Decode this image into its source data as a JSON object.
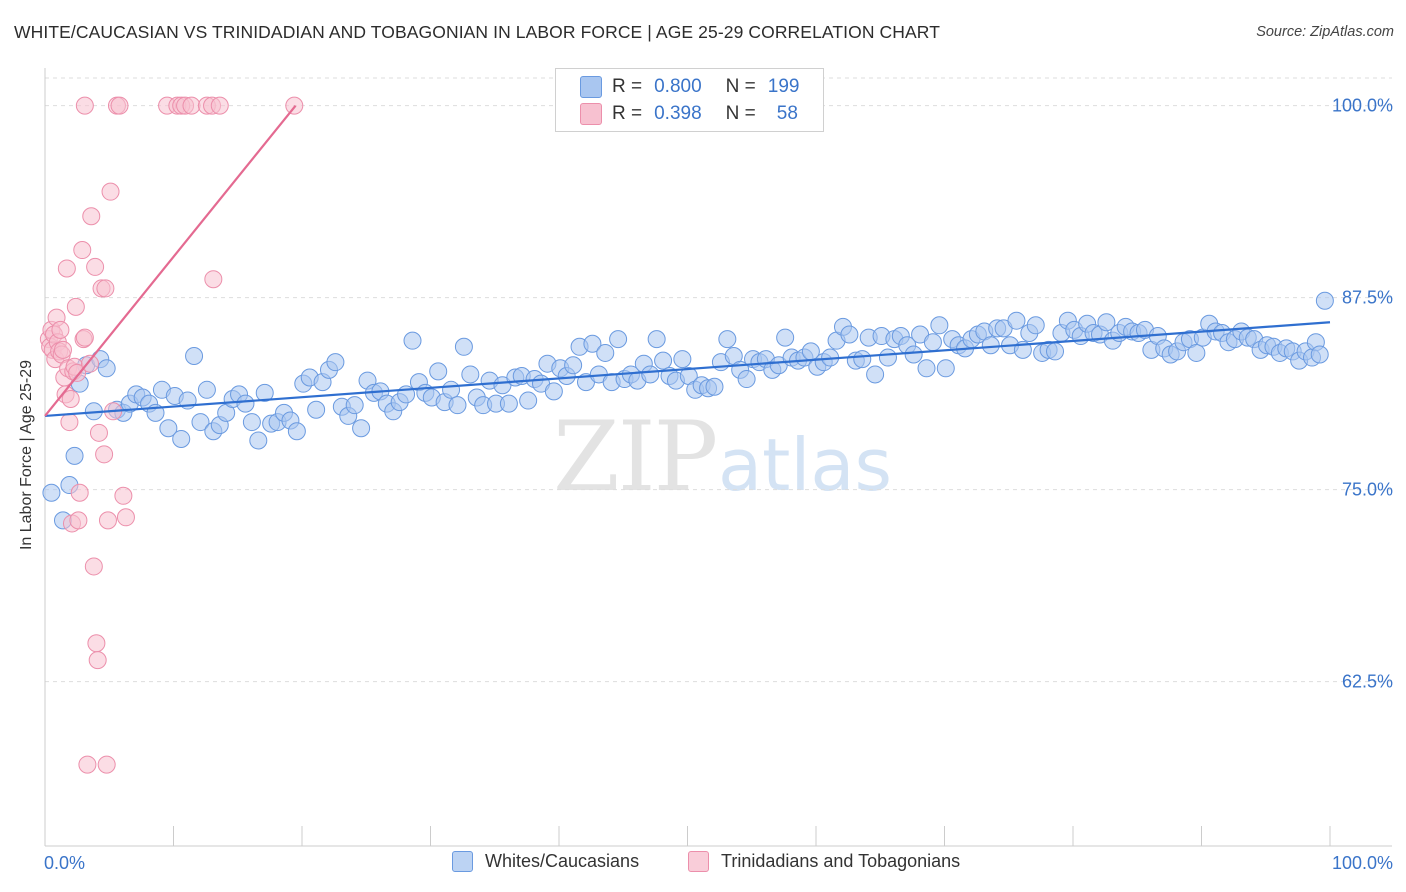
{
  "title": "WHITE/CAUCASIAN VS TRINIDADIAN AND TOBAGONIAN IN LABOR FORCE | AGE 25-29 CORRELATION CHART",
  "source": "Source: ZipAtlas.com",
  "watermark": {
    "zip": "ZIP",
    "atlas": "atlas"
  },
  "stats": [
    {
      "r_label": "R =",
      "r_value": "0.800",
      "n_label": "N =",
      "n_value": "199",
      "color": "#a9c6f0",
      "border": "#6a9ae0"
    },
    {
      "r_label": "R =",
      "r_value": "0.398",
      "n_label": "N =",
      "n_value": "58",
      "color": "#f7c1d0",
      "border": "#ec8fab"
    }
  ],
  "legend": [
    {
      "label": "Whites/Caucasians",
      "color": "#bcd3f3",
      "border": "#6a9ae0"
    },
    {
      "label": "Trinidadians and Tobagonians",
      "color": "#f9cdd9",
      "border": "#ec8fab"
    }
  ],
  "chart_data": {
    "type": "scatter",
    "title": "WHITE/CAUCASIAN VS TRINIDADIAN AND TOBAGONIAN IN LABOR FORCE | AGE 25-29 CORRELATION CHART",
    "xlabel": "",
    "ylabel": "In Labor Force | Age 25-29",
    "xlim": [
      0,
      100
    ],
    "ylim": [
      51.8,
      101.8
    ],
    "x_tick_labels": [
      {
        "value": 0,
        "label": "0.0%"
      },
      {
        "value": 100,
        "label": "100.0%"
      }
    ],
    "y_tick_labels": [
      {
        "value": 100,
        "label": "100.0%"
      },
      {
        "value": 87.5,
        "label": "87.5%"
      },
      {
        "value": 75,
        "label": "75.0%"
      },
      {
        "value": 62.5,
        "label": "62.5%"
      }
    ],
    "colors": {
      "blue_fill": "#a9c6f0",
      "blue_stroke": "#6a9ae0",
      "blue_line": "#2f6fd0",
      "pink_fill": "#f7c1d0",
      "pink_stroke": "#ec8fab",
      "pink_line": "#e46a91",
      "axis_text": "#3a74c9",
      "grid": "#dddddd"
    },
    "series": [
      {
        "name": "Whites/Caucasians",
        "trend": {
          "x": [
            0,
            100
          ],
          "y": [
            79.8,
            85.9
          ]
        },
        "points": [
          [
            0.5,
            74.8
          ],
          [
            1.4,
            73.0
          ],
          [
            1.9,
            75.3
          ],
          [
            2.3,
            77.2
          ],
          [
            2.7,
            81.9
          ],
          [
            3.2,
            83.1
          ],
          [
            3.8,
            80.1
          ],
          [
            4.3,
            83.5
          ],
          [
            4.8,
            82.9
          ],
          [
            5.6,
            80.2
          ],
          [
            6.1,
            80.0
          ],
          [
            6.6,
            80.6
          ],
          [
            7.1,
            81.2
          ],
          [
            7.6,
            81.0
          ],
          [
            8.1,
            80.6
          ],
          [
            8.6,
            80.0
          ],
          [
            9.1,
            81.5
          ],
          [
            9.6,
            79.0
          ],
          [
            10.1,
            81.1
          ],
          [
            10.6,
            78.3
          ],
          [
            11.1,
            80.8
          ],
          [
            11.6,
            83.7
          ],
          [
            12.1,
            79.4
          ],
          [
            12.6,
            81.5
          ],
          [
            13.1,
            78.8
          ],
          [
            13.6,
            79.2
          ],
          [
            14.1,
            80.0
          ],
          [
            14.6,
            80.9
          ],
          [
            15.1,
            81.2
          ],
          [
            15.6,
            80.6
          ],
          [
            16.1,
            79.4
          ],
          [
            16.6,
            78.2
          ],
          [
            17.1,
            81.3
          ],
          [
            17.6,
            79.3
          ],
          [
            18.1,
            79.4
          ],
          [
            18.6,
            80.0
          ],
          [
            19.1,
            79.5
          ],
          [
            19.6,
            78.8
          ],
          [
            20.1,
            81.9
          ],
          [
            20.6,
            82.3
          ],
          [
            21.1,
            80.2
          ],
          [
            21.6,
            82.0
          ],
          [
            22.1,
            82.8
          ],
          [
            22.6,
            83.3
          ],
          [
            23.1,
            80.4
          ],
          [
            23.6,
            79.8
          ],
          [
            24.1,
            80.5
          ],
          [
            24.6,
            79.0
          ],
          [
            25.1,
            82.1
          ],
          [
            25.6,
            81.3
          ],
          [
            26.1,
            81.4
          ],
          [
            26.6,
            80.6
          ],
          [
            27.1,
            80.1
          ],
          [
            27.6,
            80.7
          ],
          [
            28.1,
            81.2
          ],
          [
            28.6,
            84.7
          ],
          [
            29.1,
            82.0
          ],
          [
            29.6,
            81.3
          ],
          [
            30.1,
            81.0
          ],
          [
            30.6,
            82.7
          ],
          [
            31.1,
            80.7
          ],
          [
            31.6,
            81.5
          ],
          [
            32.1,
            80.5
          ],
          [
            32.6,
            84.3
          ],
          [
            33.1,
            82.5
          ],
          [
            33.6,
            81.0
          ],
          [
            34.1,
            80.5
          ],
          [
            34.6,
            82.1
          ],
          [
            35.1,
            80.6
          ],
          [
            35.6,
            81.8
          ],
          [
            36.1,
            80.6
          ],
          [
            36.6,
            82.3
          ],
          [
            37.1,
            82.4
          ],
          [
            37.6,
            80.8
          ],
          [
            38.1,
            82.2
          ],
          [
            38.6,
            81.9
          ],
          [
            39.1,
            83.2
          ],
          [
            39.6,
            81.4
          ],
          [
            40.1,
            82.9
          ],
          [
            40.6,
            82.4
          ],
          [
            41.1,
            83.1
          ],
          [
            41.6,
            84.3
          ],
          [
            42.1,
            82.0
          ],
          [
            42.6,
            84.5
          ],
          [
            43.1,
            82.5
          ],
          [
            43.6,
            83.9
          ],
          [
            44.1,
            82.0
          ],
          [
            44.6,
            84.8
          ],
          [
            45.1,
            82.2
          ],
          [
            45.6,
            82.5
          ],
          [
            46.1,
            82.1
          ],
          [
            46.6,
            83.2
          ],
          [
            47.1,
            82.5
          ],
          [
            47.6,
            84.8
          ],
          [
            48.1,
            83.4
          ],
          [
            48.6,
            82.4
          ],
          [
            49.1,
            82.1
          ],
          [
            49.6,
            83.5
          ],
          [
            50.1,
            82.4
          ],
          [
            50.6,
            81.5
          ],
          [
            51.1,
            81.8
          ],
          [
            51.6,
            81.6
          ],
          [
            52.1,
            81.7
          ],
          [
            52.6,
            83.3
          ],
          [
            53.1,
            84.8
          ],
          [
            53.6,
            83.7
          ],
          [
            54.1,
            82.8
          ],
          [
            54.6,
            82.2
          ],
          [
            55.1,
            83.5
          ],
          [
            55.6,
            83.3
          ],
          [
            56.1,
            83.5
          ],
          [
            56.6,
            82.8
          ],
          [
            57.1,
            83.1
          ],
          [
            57.6,
            84.9
          ],
          [
            58.1,
            83.6
          ],
          [
            58.6,
            83.4
          ],
          [
            59.1,
            83.6
          ],
          [
            59.6,
            84.0
          ],
          [
            60.1,
            83.0
          ],
          [
            60.6,
            83.3
          ],
          [
            61.1,
            83.6
          ],
          [
            61.6,
            84.7
          ],
          [
            62.1,
            85.6
          ],
          [
            62.6,
            85.1
          ],
          [
            63.1,
            83.4
          ],
          [
            63.6,
            83.5
          ],
          [
            64.1,
            84.9
          ],
          [
            64.6,
            82.5
          ],
          [
            65.1,
            85.0
          ],
          [
            65.6,
            83.6
          ],
          [
            66.1,
            84.8
          ],
          [
            66.6,
            85.0
          ],
          [
            67.1,
            84.4
          ],
          [
            67.6,
            83.8
          ],
          [
            68.1,
            85.1
          ],
          [
            68.6,
            82.9
          ],
          [
            69.1,
            84.6
          ],
          [
            69.6,
            85.7
          ],
          [
            70.1,
            82.9
          ],
          [
            70.6,
            84.8
          ],
          [
            71.1,
            84.4
          ],
          [
            71.6,
            84.2
          ],
          [
            72.1,
            84.8
          ],
          [
            72.6,
            85.1
          ],
          [
            73.1,
            85.3
          ],
          [
            73.6,
            84.4
          ],
          [
            74.1,
            85.5
          ],
          [
            74.6,
            85.5
          ],
          [
            75.1,
            84.4
          ],
          [
            75.6,
            86.0
          ],
          [
            76.1,
            84.1
          ],
          [
            76.6,
            85.2
          ],
          [
            77.1,
            85.7
          ],
          [
            77.6,
            83.9
          ],
          [
            78.1,
            84.1
          ],
          [
            78.6,
            84.0
          ],
          [
            79.1,
            85.2
          ],
          [
            79.6,
            86.0
          ],
          [
            80.1,
            85.4
          ],
          [
            80.6,
            85.0
          ],
          [
            81.1,
            85.8
          ],
          [
            81.6,
            85.2
          ],
          [
            82.1,
            85.1
          ],
          [
            82.6,
            85.9
          ],
          [
            83.1,
            84.7
          ],
          [
            83.6,
            85.2
          ],
          [
            84.1,
            85.6
          ],
          [
            84.6,
            85.3
          ],
          [
            85.1,
            85.2
          ],
          [
            85.6,
            85.4
          ],
          [
            86.1,
            84.1
          ],
          [
            86.6,
            85.0
          ],
          [
            87.1,
            84.2
          ],
          [
            87.6,
            83.8
          ],
          [
            88.1,
            84.0
          ],
          [
            88.6,
            84.6
          ],
          [
            89.1,
            84.8
          ],
          [
            89.6,
            83.9
          ],
          [
            90.1,
            84.9
          ],
          [
            90.6,
            85.8
          ],
          [
            91.1,
            85.3
          ],
          [
            91.6,
            85.2
          ],
          [
            92.1,
            84.6
          ],
          [
            92.6,
            84.8
          ],
          [
            93.1,
            85.3
          ],
          [
            93.6,
            84.9
          ],
          [
            94.1,
            84.8
          ],
          [
            94.6,
            84.1
          ],
          [
            95.1,
            84.4
          ],
          [
            95.6,
            84.3
          ],
          [
            96.1,
            83.9
          ],
          [
            96.6,
            84.2
          ],
          [
            97.1,
            84.0
          ],
          [
            97.6,
            83.4
          ],
          [
            98.1,
            84.0
          ],
          [
            98.6,
            83.6
          ],
          [
            98.9,
            84.6
          ],
          [
            99.2,
            83.8
          ],
          [
            99.6,
            87.3
          ]
        ]
      },
      {
        "name": "Trinidadians and Tobagonians",
        "trend": {
          "x": [
            0,
            19.5
          ],
          "y": [
            79.8,
            100.0
          ]
        },
        "points": [
          [
            0.3,
            84.8
          ],
          [
            0.4,
            84.3
          ],
          [
            0.5,
            85.4
          ],
          [
            0.6,
            84.1
          ],
          [
            0.7,
            85.1
          ],
          [
            0.8,
            83.5
          ],
          [
            0.9,
            86.2
          ],
          [
            1.0,
            84.6
          ],
          [
            1.1,
            84.0
          ],
          [
            1.2,
            85.4
          ],
          [
            1.3,
            83.8
          ],
          [
            1.4,
            84.1
          ],
          [
            1.5,
            82.3
          ],
          [
            1.6,
            81.2
          ],
          [
            1.7,
            89.4
          ],
          [
            1.8,
            82.9
          ],
          [
            1.9,
            79.4
          ],
          [
            2.0,
            80.9
          ],
          [
            2.1,
            72.8
          ],
          [
            2.2,
            82.7
          ],
          [
            2.3,
            83.0
          ],
          [
            2.4,
            86.9
          ],
          [
            2.5,
            82.6
          ],
          [
            2.6,
            73.0
          ],
          [
            2.7,
            74.8
          ],
          [
            2.9,
            90.6
          ],
          [
            3.0,
            84.8
          ],
          [
            3.1,
            84.9
          ],
          [
            3.3,
            57.1
          ],
          [
            3.5,
            83.2
          ],
          [
            3.6,
            92.8
          ],
          [
            3.8,
            70.0
          ],
          [
            3.9,
            89.5
          ],
          [
            4.0,
            65.0
          ],
          [
            4.1,
            63.9
          ],
          [
            4.2,
            78.7
          ],
          [
            4.4,
            88.1
          ],
          [
            4.6,
            77.3
          ],
          [
            4.8,
            57.1
          ],
          [
            4.9,
            73.0
          ],
          [
            5.1,
            94.4
          ],
          [
            5.3,
            80.1
          ],
          [
            5.6,
            100.0
          ],
          [
            5.8,
            100.0
          ],
          [
            6.1,
            74.6
          ],
          [
            6.3,
            73.2
          ],
          [
            3.1,
            100.0
          ],
          [
            9.5,
            100.0
          ],
          [
            10.3,
            100.0
          ],
          [
            10.6,
            100.0
          ],
          [
            10.9,
            100.0
          ],
          [
            11.4,
            100.0
          ],
          [
            12.6,
            100.0
          ],
          [
            13.0,
            100.0
          ],
          [
            13.6,
            100.0
          ],
          [
            13.1,
            88.7
          ],
          [
            4.7,
            88.1
          ],
          [
            19.4,
            100.0
          ]
        ]
      }
    ]
  }
}
